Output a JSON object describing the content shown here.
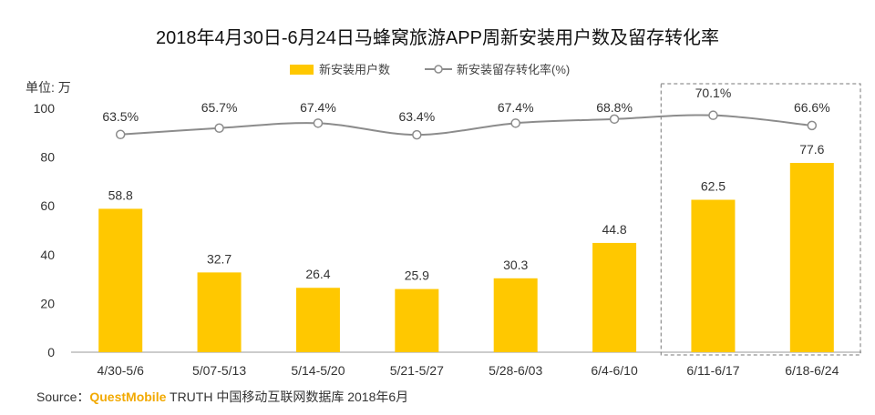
{
  "chart_data": {
    "type": "bar",
    "title": "2018年4月30日-6月24日马蜂窝旅游APP周新安装用户数及留存转化率",
    "ylabel": "单位: 万",
    "ylim": [
      0,
      100
    ],
    "yticks": [
      0,
      20,
      40,
      60,
      80,
      100
    ],
    "grid": false,
    "legend_placement": "top-center",
    "categories": [
      "4/30-5/6",
      "5/07-5/13",
      "5/14-5/20",
      "5/21-5/27",
      "5/28-6/03",
      "6/4-6/10",
      "6/11-6/17",
      "6/18-6/24"
    ],
    "series": [
      {
        "name": "新安装用户数",
        "type": "bar",
        "color": "#FFC800",
        "values": [
          58.8,
          32.7,
          26.4,
          25.9,
          30.3,
          44.8,
          62.5,
          77.6
        ],
        "labels": [
          "58.8",
          "32.7",
          "26.4",
          "25.9",
          "30.3",
          "44.8",
          "62.5",
          "77.6"
        ]
      },
      {
        "name": "新安装留存转化率(%)",
        "type": "line",
        "color": "#8C8C8C",
        "values": [
          63.5,
          65.7,
          67.4,
          63.4,
          67.4,
          68.8,
          70.1,
          66.6
        ],
        "labels": [
          "63.5%",
          "65.7%",
          "67.4%",
          "63.4%",
          "67.4%",
          "68.8%",
          "70.1%",
          "66.6%"
        ]
      }
    ],
    "highlight": {
      "from_index": 6,
      "to_index": 7,
      "style": "dashed-box"
    }
  },
  "source": {
    "prefix": "Source：",
    "brand": "QuestMobile",
    "text": " TRUTH 中国移动互联网数据库 2018年6月"
  }
}
